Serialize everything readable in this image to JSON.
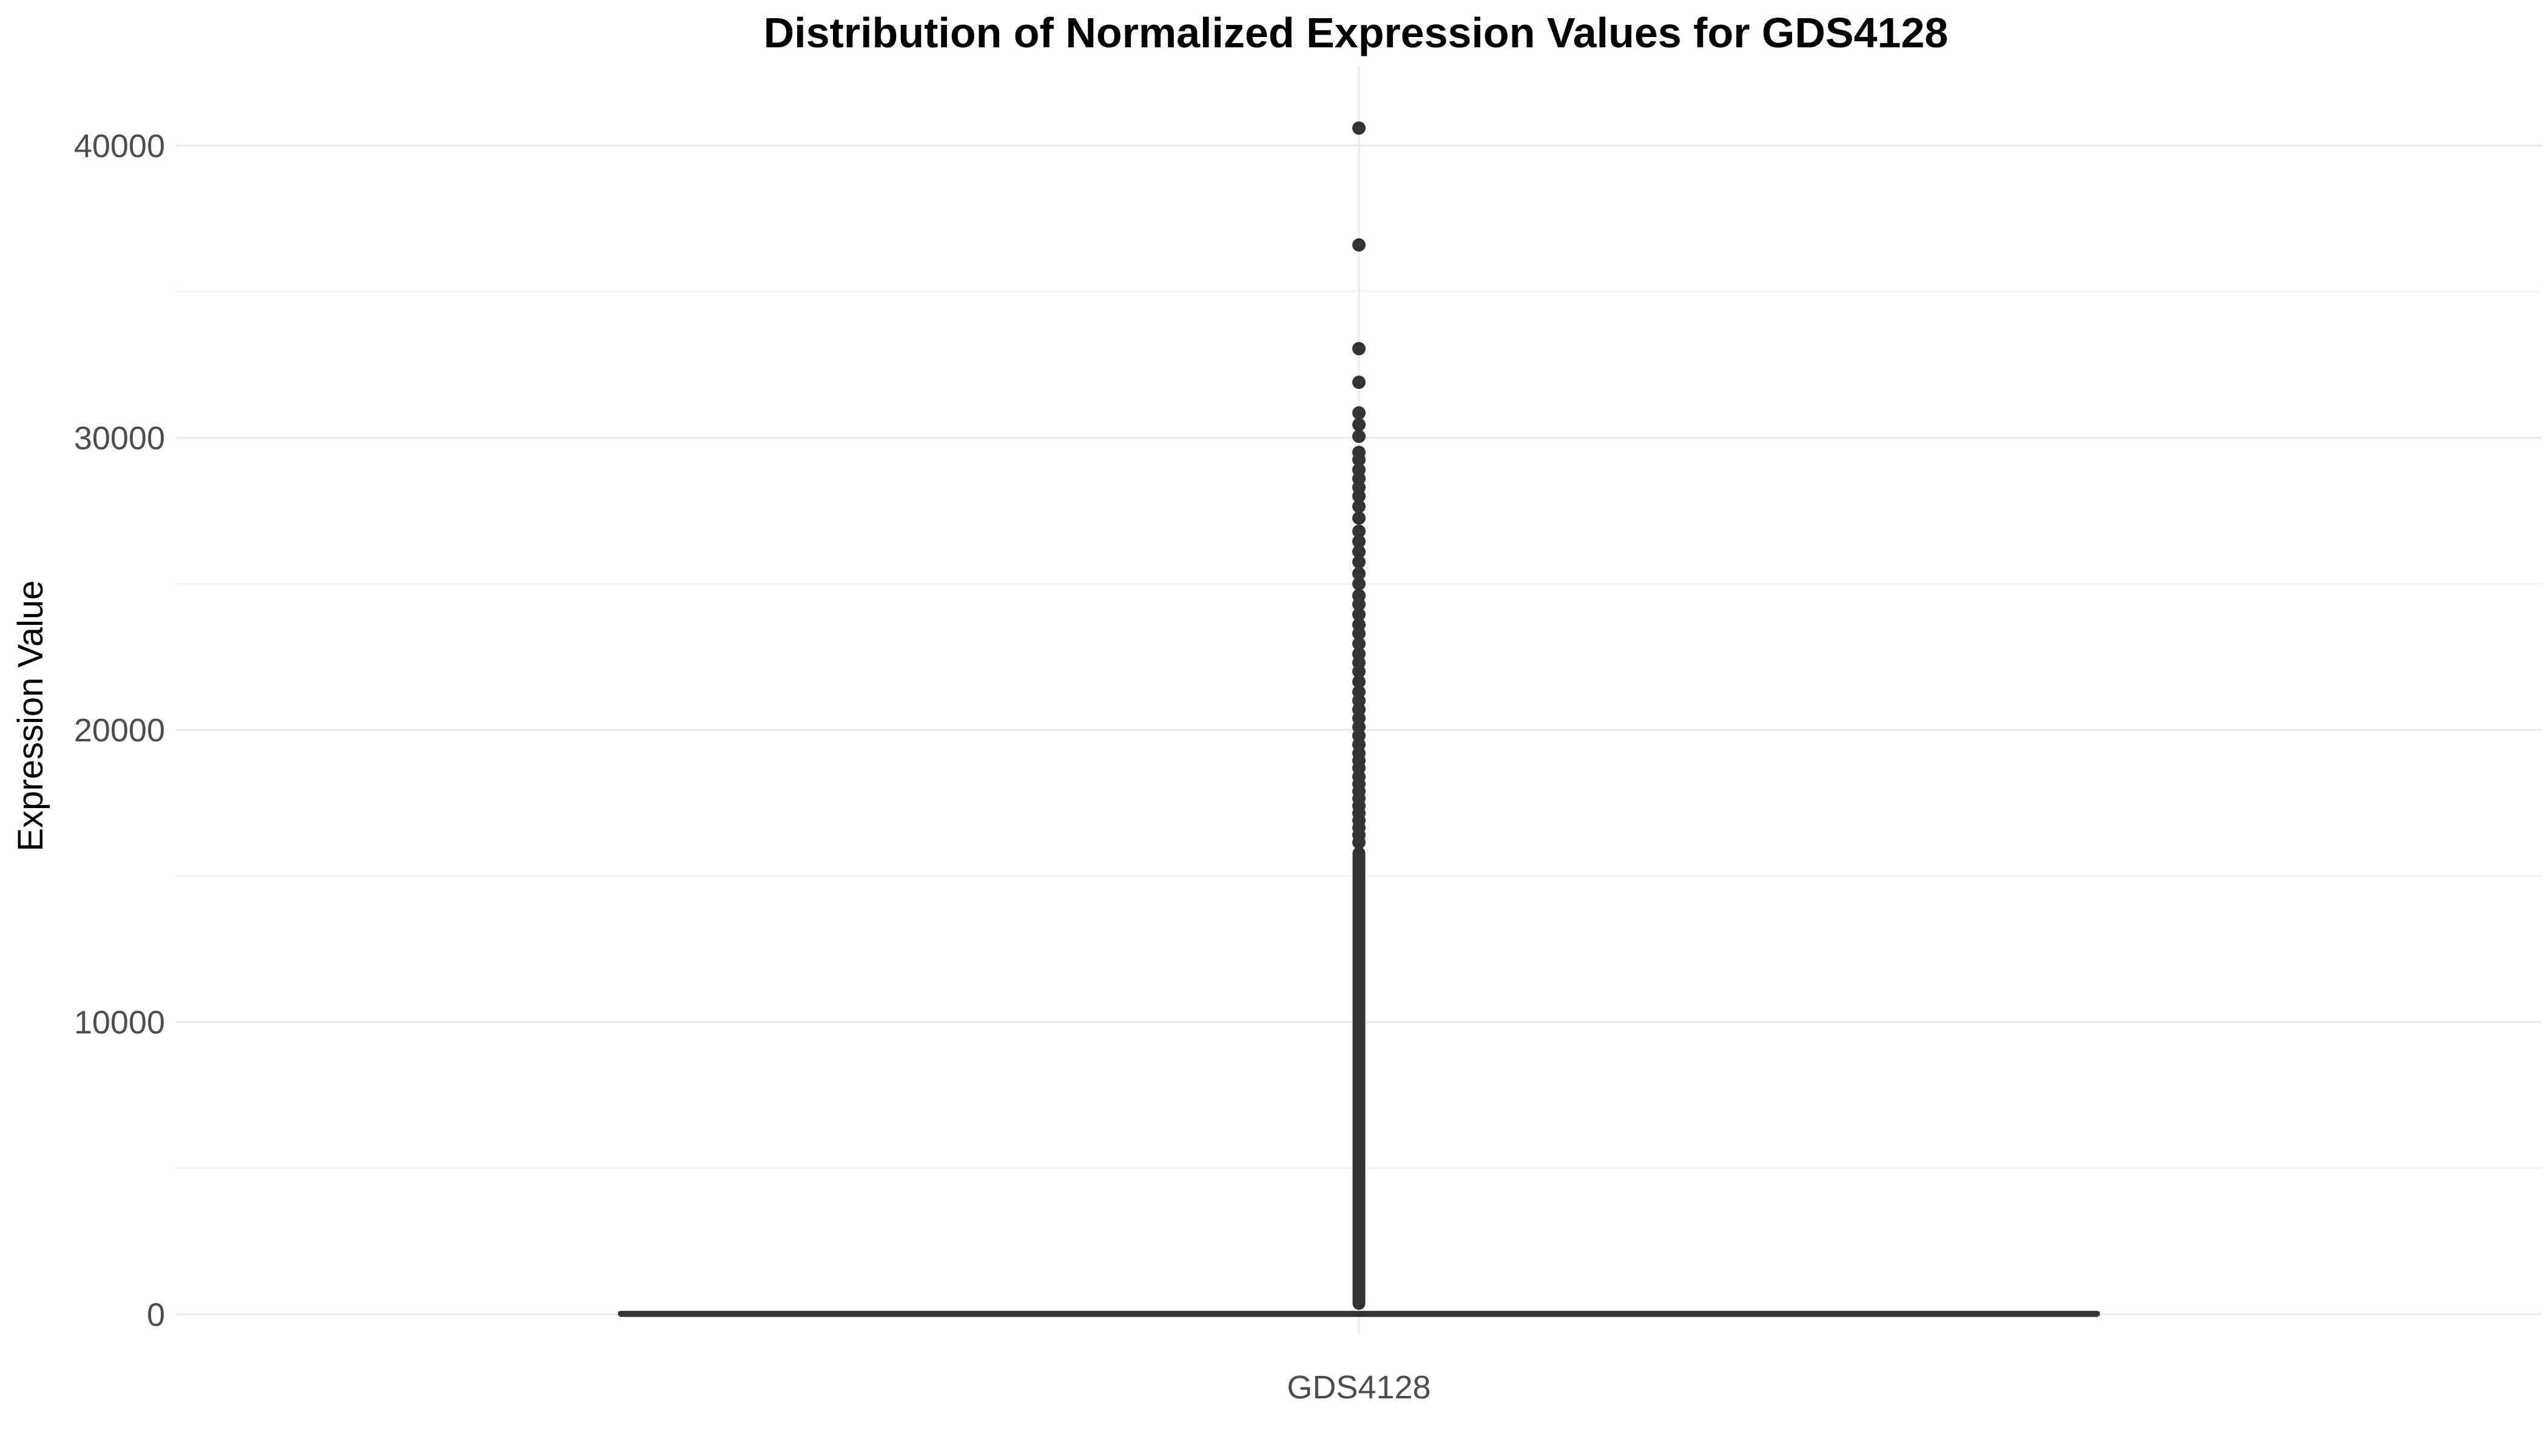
{
  "chart_data": {
    "type": "box",
    "title": "Distribution of Normalized Expression Values for GDS4128",
    "xlabel": "",
    "ylabel": "Expression Value",
    "categories": [
      "GDS4128"
    ],
    "ylim": [
      -700,
      42700
    ],
    "yticks": [
      0,
      10000,
      20000,
      30000,
      40000
    ],
    "ytick_labels": [
      "0",
      "10000",
      "20000",
      "30000",
      "40000"
    ],
    "grid": true,
    "box": {
      "category": "GDS4128",
      "q1": 0,
      "median": 10,
      "q3": 40,
      "whisker_low": 0,
      "whisker_high": 110
    },
    "outliers": [
      40600,
      36600,
      33050,
      31900,
      30850,
      30450,
      30050,
      29500,
      29250,
      28900,
      28600,
      28300,
      28000,
      27650,
      27250,
      26800,
      26450,
      26100,
      25750,
      25350,
      25000,
      24600,
      24300,
      23950,
      23600,
      23300,
      22950,
      22600,
      22300,
      22000,
      21650,
      21300,
      21000,
      20700,
      20400,
      20100,
      19800,
      19500,
      19200,
      18950,
      18700,
      18400,
      18150,
      17900,
      17650,
      17400,
      17150,
      16900,
      16650,
      16400,
      16150
    ],
    "dense_outlier_range": [
      150,
      16000
    ],
    "colors": {
      "box": "#333333",
      "points": "#333333",
      "grid": "#ebebeb"
    }
  }
}
